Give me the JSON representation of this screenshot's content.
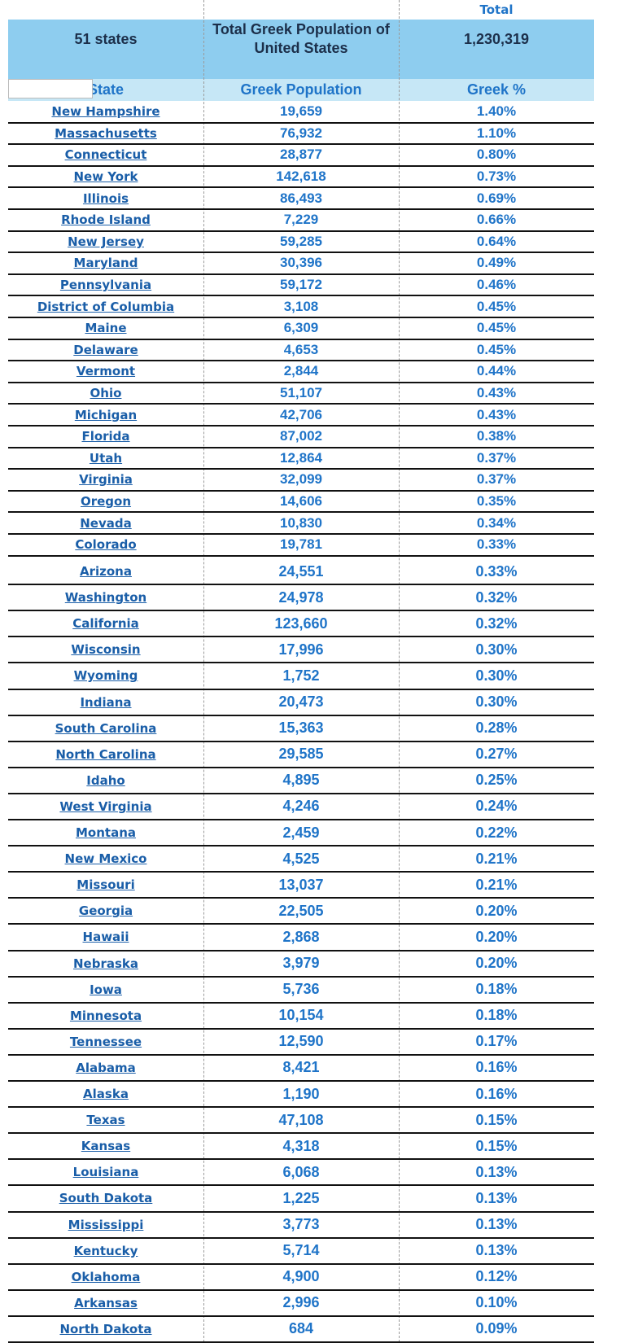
{
  "header": {
    "total_label": "Total",
    "states_label": "51 states",
    "title": "Total Greek Population of United States",
    "total": "1,230,319"
  },
  "columns": [
    "State",
    "Greek Population",
    "Greek %"
  ],
  "rows": [
    [
      "New Hampshire",
      "19,659",
      "1.40%"
    ],
    [
      "Massachusetts",
      "76,932",
      "1.10%"
    ],
    [
      "Connecticut",
      "28,877",
      "0.80%"
    ],
    [
      "New York",
      "142,618",
      "0.73%"
    ],
    [
      "Illinois",
      "86,493",
      "0.69%"
    ],
    [
      "Rhode Island",
      "7,229",
      "0.66%"
    ],
    [
      "New Jersey",
      "59,285",
      "0.64%"
    ],
    [
      "Maryland",
      "30,396",
      "0.49%"
    ],
    [
      "Pennsylvania",
      "59,172",
      "0.46%"
    ],
    [
      "District of Columbia",
      "3,108",
      "0.45%"
    ],
    [
      "Maine",
      "6,309",
      "0.45%"
    ],
    [
      "Delaware",
      "4,653",
      "0.45%"
    ],
    [
      "Vermont",
      "2,844",
      "0.44%"
    ],
    [
      "Ohio",
      "51,107",
      "0.43%"
    ],
    [
      "Michigan",
      "42,706",
      "0.43%"
    ],
    [
      "Florida",
      "87,002",
      "0.38%"
    ],
    [
      "Utah",
      "12,864",
      "0.37%"
    ],
    [
      "Virginia",
      "32,099",
      "0.37%"
    ],
    [
      "Oregon",
      "14,606",
      "0.35%"
    ],
    [
      "Nevada",
      "10,830",
      "0.34%"
    ],
    [
      "Colorado",
      "19,781",
      "0.33%"
    ],
    [
      "Arizona",
      "24,551",
      "0.33%"
    ],
    [
      "Washington",
      "24,978",
      "0.32%"
    ],
    [
      "California",
      "123,660",
      "0.32%"
    ],
    [
      "Wisconsin",
      "17,996",
      "0.30%"
    ],
    [
      "Wyoming",
      "1,752",
      "0.30%"
    ],
    [
      "Indiana",
      "20,473",
      "0.30%"
    ],
    [
      "South Carolina",
      "15,363",
      "0.28%"
    ],
    [
      "North Carolina",
      "29,585",
      "0.27%"
    ],
    [
      "Idaho",
      "4,895",
      "0.25%"
    ],
    [
      "West Virginia",
      "4,246",
      "0.24%"
    ],
    [
      "Montana",
      "2,459",
      "0.22%"
    ],
    [
      "New Mexico",
      "4,525",
      "0.21%"
    ],
    [
      "Missouri",
      "13,037",
      "0.21%"
    ],
    [
      "Georgia",
      "22,505",
      "0.20%"
    ],
    [
      "Hawaii",
      "2,868",
      "0.20%"
    ],
    [
      "Nebraska",
      "3,979",
      "0.20%"
    ],
    [
      "Iowa",
      "5,736",
      "0.18%"
    ],
    [
      "Minnesota",
      "10,154",
      "0.18%"
    ],
    [
      "Tennessee",
      "12,590",
      "0.17%"
    ],
    [
      "Alabama",
      "8,421",
      "0.16%"
    ],
    [
      "Alaska",
      "1,190",
      "0.16%"
    ],
    [
      "Texas",
      "47,108",
      "0.15%"
    ],
    [
      "Kansas",
      "4,318",
      "0.15%"
    ],
    [
      "Louisiana",
      "6,068",
      "0.13%"
    ],
    [
      "South Dakota",
      "1,225",
      "0.13%"
    ],
    [
      "Mississippi",
      "3,773",
      "0.13%"
    ],
    [
      "Kentucky",
      "5,714",
      "0.13%"
    ],
    [
      "Oklahoma",
      "4,900",
      "0.12%"
    ],
    [
      "Arkansas",
      "2,996",
      "0.10%"
    ],
    [
      "North Dakota",
      "684",
      "0.09%"
    ]
  ]
}
